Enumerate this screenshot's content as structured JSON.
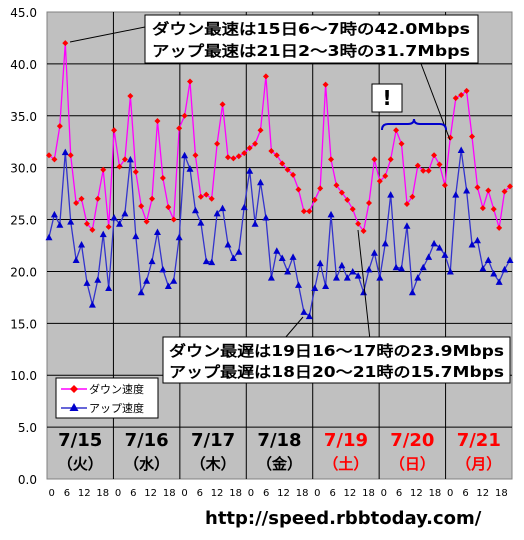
{
  "chart_data": {
    "type": "line",
    "ylim": [
      0,
      45
    ],
    "yticks": [
      0,
      5,
      10,
      15,
      20,
      25,
      30,
      35,
      40,
      45
    ],
    "ytick_labels": [
      "0.0",
      "5.0",
      "10.0",
      "15.0",
      "20.0",
      "25.0",
      "30.0",
      "35.0",
      "40.0",
      "45.0"
    ],
    "hour_tick_labels": [
      "0",
      "6",
      "12",
      "18"
    ],
    "grid": true,
    "legend_position": "bottom-left",
    "days": [
      {
        "date": "7/15",
        "weekday": "（火）",
        "holiday": false
      },
      {
        "date": "7/16",
        "weekday": "（水）",
        "holiday": false
      },
      {
        "date": "7/17",
        "weekday": "（木）",
        "holiday": false
      },
      {
        "date": "7/18",
        "weekday": "（金）",
        "holiday": false
      },
      {
        "date": "7/19",
        "weekday": "（土）",
        "holiday": true
      },
      {
        "date": "7/20",
        "weekday": "（日）",
        "holiday": true
      },
      {
        "date": "7/21",
        "weekday": "（月）",
        "holiday": true
      }
    ],
    "series": [
      {
        "name": "ダウン速度",
        "color": "#ff00ff",
        "marker": "diamond",
        "marker_color": "#ff0000",
        "values": [
          31.2,
          30.8,
          34.0,
          42.0,
          31.2,
          26.6,
          27.0,
          24.6,
          24.0,
          27.0,
          29.8,
          24.3,
          33.6,
          30.1,
          30.8,
          36.9,
          29.6,
          26.3,
          24.8,
          27.0,
          34.5,
          29.0,
          26.2,
          25.0,
          33.8,
          35.0,
          38.3,
          31.2,
          27.2,
          27.4,
          27.0,
          32.3,
          36.1,
          31.0,
          30.9,
          31.1,
          31.4,
          31.9,
          32.3,
          33.6,
          38.8,
          31.6,
          31.2,
          30.4,
          29.8,
          29.3,
          27.9,
          25.8,
          25.8,
          26.9,
          28.0,
          38.0,
          30.8,
          28.3,
          27.6,
          26.9,
          26.0,
          24.6,
          23.9,
          26.6,
          30.8,
          28.7,
          29.2,
          30.8,
          33.6,
          32.3,
          26.5,
          27.2,
          30.2,
          29.7,
          29.7,
          31.2,
          30.3,
          28.3,
          32.9,
          36.7,
          37.0,
          37.4,
          33.0,
          28.1,
          26.1,
          27.8,
          26.0,
          24.2,
          27.7,
          28.2
        ]
      },
      {
        "name": "アップ速度",
        "color": "#3333cc",
        "marker": "triangle",
        "marker_color": "#0000cc",
        "values": [
          23.3,
          25.5,
          24.5,
          31.5,
          24.8,
          21.1,
          22.6,
          18.9,
          16.8,
          19.2,
          23.6,
          18.4,
          25.2,
          24.6,
          25.6,
          30.8,
          23.4,
          18.0,
          19.1,
          21.0,
          23.8,
          20.2,
          18.6,
          19.1,
          23.3,
          31.2,
          29.9,
          25.9,
          24.7,
          21.0,
          20.9,
          25.6,
          26.1,
          22.6,
          21.3,
          21.9,
          26.2,
          29.7,
          24.6,
          28.6,
          25.2,
          19.4,
          22.0,
          21.3,
          20.0,
          21.4,
          18.7,
          16.1,
          15.7,
          18.4,
          20.8,
          18.6,
          25.5,
          19.4,
          20.6,
          19.4,
          20.0,
          19.6,
          18.0,
          20.2,
          21.8,
          19.4,
          22.7,
          27.4,
          20.4,
          20.3,
          24.4,
          18.0,
          19.4,
          20.4,
          21.4,
          22.7,
          22.3,
          21.6,
          20.0,
          27.4,
          31.7,
          27.8,
          22.6,
          23.0,
          20.3,
          21.1,
          19.8,
          19.0,
          20.2,
          21.1
        ]
      }
    ],
    "annotations": [
      {
        "key": "top",
        "lines": [
          "ダウン最速は15日6～7時の42.0Mbps",
          "アップ最速は21日2～3時の31.7Mbps"
        ]
      },
      {
        "key": "bottom",
        "lines": [
          "ダウン最遅は19日16～17時の23.9Mbps",
          "アップ最遅は18日20～21時の15.7Mbps"
        ]
      },
      {
        "key": "exclaim",
        "lines": [
          "!"
        ]
      }
    ]
  },
  "source_url": "http://speed.rbbtoday.com/"
}
